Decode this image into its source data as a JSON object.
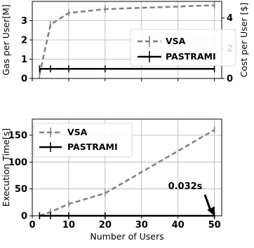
{
  "chart_data": [
    {
      "type": "line",
      "x": [
        2,
        5,
        10,
        20,
        50
      ],
      "xlim": [
        0,
        52
      ],
      "xticks": [
        0,
        10,
        20,
        30,
        40,
        50
      ],
      "ylabel": "Gas per User[M]",
      "ylim": [
        0,
        4
      ],
      "yticks": [
        0,
        1,
        2,
        3
      ],
      "ylabel_right": "Cost per User [$]",
      "y2ticks": [
        0,
        2,
        4
      ],
      "grid": true,
      "legend": "center-right",
      "series": [
        {
          "name": "VSA",
          "values": [
            0.2,
            2.8,
            3.4,
            3.6,
            3.8
          ],
          "color": "#808080",
          "style": "dashed"
        },
        {
          "name": "PASTRAMI",
          "values": [
            0.5,
            0.5,
            0.5,
            0.5,
            0.5
          ],
          "color": "#000000",
          "style": "solid"
        }
      ]
    },
    {
      "type": "line",
      "x": [
        2,
        5,
        10,
        20,
        50
      ],
      "xlim": [
        0,
        52
      ],
      "xticks": [
        0,
        10,
        20,
        30,
        40,
        50
      ],
      "xlabel": "Number of Users",
      "ylabel": "Execution Time[s]",
      "ylim": [
        0,
        180
      ],
      "yticks": [
        0,
        50,
        100,
        150
      ],
      "grid": true,
      "legend": "upper-left",
      "annotation": {
        "text": "0.032s",
        "x": 50,
        "y": 0
      },
      "series": [
        {
          "name": "VSA",
          "values": [
            0,
            7,
            22,
            42,
            160
          ],
          "color": "#808080",
          "style": "dashed"
        },
        {
          "name": "PASTRAMI",
          "values": [
            0.032,
            0.032,
            0.032,
            0.032,
            0.032
          ],
          "color": "#000000",
          "style": "solid"
        }
      ]
    }
  ]
}
